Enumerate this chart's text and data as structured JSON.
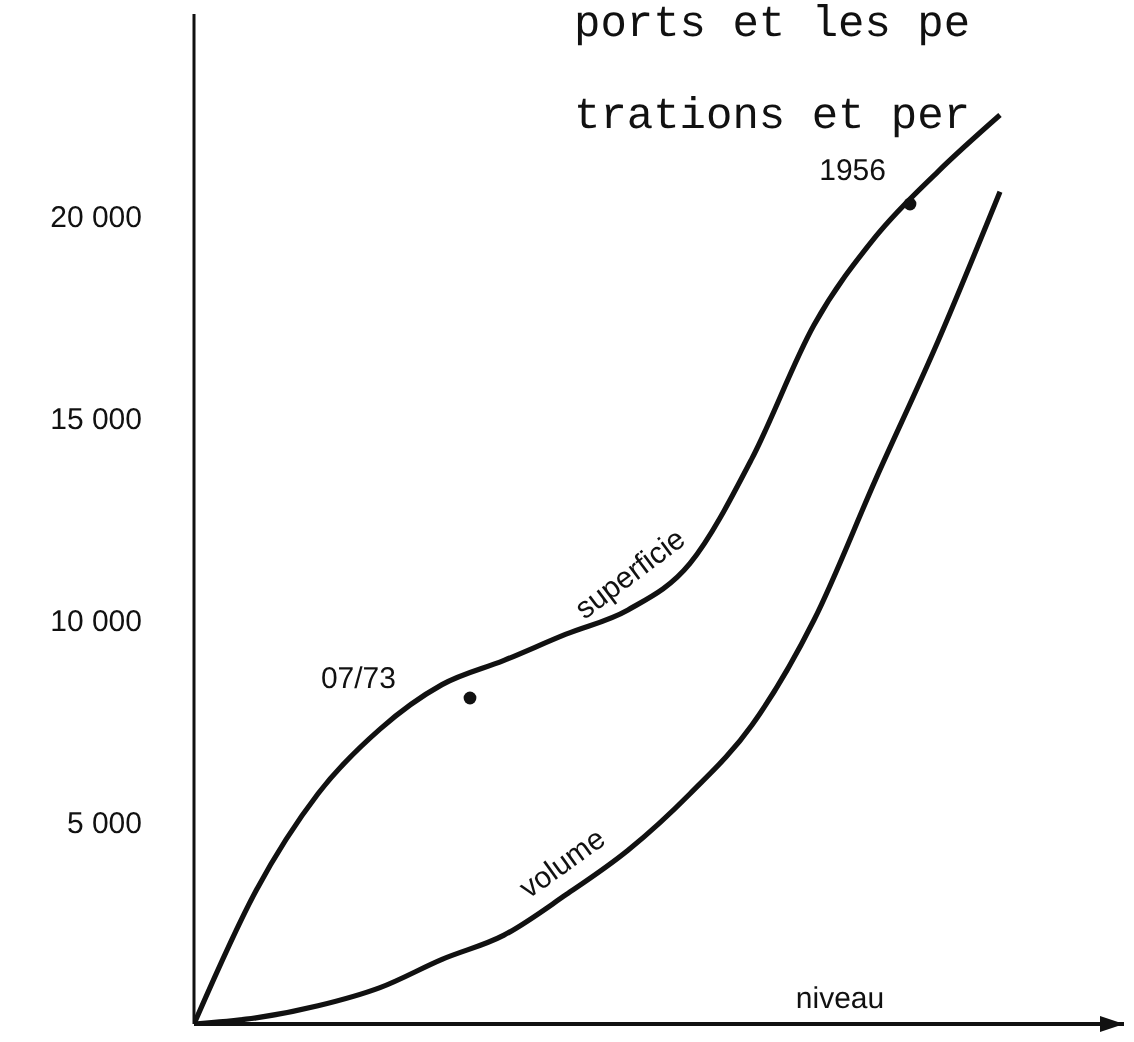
{
  "chart_data": {
    "type": "line",
    "xlabel": "niveau",
    "categories": [
      null,
      null,
      null,
      null,
      null,
      null,
      null,
      null,
      null,
      null,
      null,
      null,
      null,
      null
    ],
    "series": [
      {
        "name": "superficie",
        "color": "#111111",
        "values": [
          0,
          3300,
          5700,
          7300,
          8400,
          9000,
          9650,
          10250,
          11400,
          14000,
          17300,
          19500,
          21100,
          22500
        ]
      },
      {
        "name": "volume",
        "color": "#111111",
        "values": [
          0,
          150,
          450,
          900,
          1600,
          2200,
          3200,
          4300,
          5700,
          7400,
          10000,
          13500,
          16900,
          20600
        ]
      }
    ],
    "ylim": [
      0,
      25000
    ],
    "yticks": [
      {
        "value": 5000,
        "label": "5 000"
      },
      {
        "value": 10000,
        "label": "10 000"
      },
      {
        "value": 15000,
        "label": "15 000"
      },
      {
        "value": 20000,
        "label": "20 000"
      }
    ],
    "annotations": [
      "07/73",
      "1956",
      "ports et les pe",
      "trations et per"
    ],
    "grid": false,
    "legend": false,
    "marker": "none",
    "line_style": "solid",
    "tick_labels": "y"
  }
}
